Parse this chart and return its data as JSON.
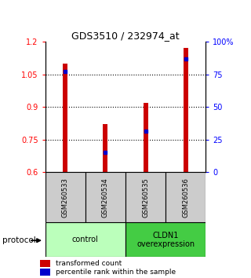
{
  "title": "GDS3510 / 232974_at",
  "samples": [
    "GSM260533",
    "GSM260534",
    "GSM260535",
    "GSM260536"
  ],
  "red_values": [
    1.1,
    0.82,
    0.92,
    1.17
  ],
  "blue_values": [
    1.065,
    0.693,
    0.79,
    1.12
  ],
  "ymin": 0.6,
  "ymax": 1.2,
  "yticks_left": [
    0.6,
    0.75,
    0.9,
    1.05,
    1.2
  ],
  "yticks_left_labels": [
    "0.6",
    "0.75",
    "0.9",
    "1.05",
    "1.2"
  ],
  "yticks_right_pct": [
    0,
    25,
    50,
    75,
    100
  ],
  "yticks_right_labels": [
    "0",
    "25",
    "50",
    "75",
    "100%"
  ],
  "groups": [
    {
      "label": "control",
      "samples": [
        0,
        1
      ],
      "color": "#bbffbb"
    },
    {
      "label": "CLDN1\noverexpression",
      "samples": [
        2,
        3
      ],
      "color": "#44cc44"
    }
  ],
  "bar_color": "#cc0000",
  "blue_color": "#0000cc",
  "bar_width": 0.12,
  "bg_color": "#ffffff",
  "sample_box_color": "#cccccc",
  "legend_red_label": "transformed count",
  "legend_blue_label": "percentile rank within the sample",
  "protocol_label": "protocol",
  "gridline_vals": [
    0.75,
    0.9,
    1.05
  ]
}
